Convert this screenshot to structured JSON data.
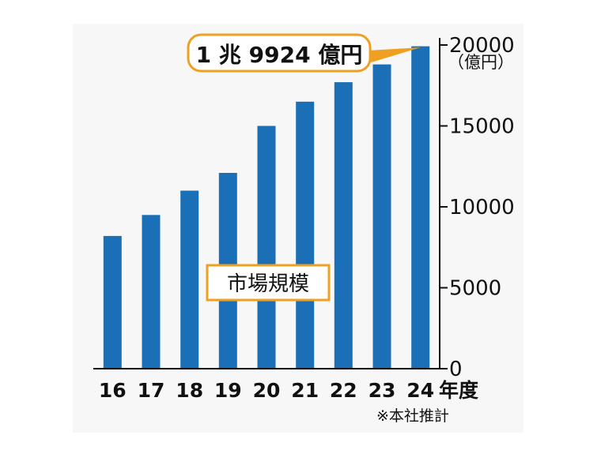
{
  "chart_data": {
    "type": "bar",
    "categories": [
      "16",
      "17",
      "18",
      "19",
      "20",
      "21",
      "22",
      "23",
      "24"
    ],
    "values": [
      8200,
      9500,
      11000,
      12100,
      15000,
      16500,
      17700,
      18800,
      19924
    ],
    "x_suffix": "年度",
    "y_unit": "（億円）",
    "ylim": [
      0,
      20000
    ],
    "yticks": [
      0,
      5000,
      10000,
      15000,
      20000
    ],
    "y_axis_position": "right",
    "series_label": "市場規模",
    "callout": "1 兆 9924 億円",
    "note": "※本社推計",
    "grid": false
  },
  "colors": {
    "bar": "#1a6fb6",
    "accent": "#f0a020",
    "panel": "#f7f7f7",
    "text": "#111111"
  }
}
